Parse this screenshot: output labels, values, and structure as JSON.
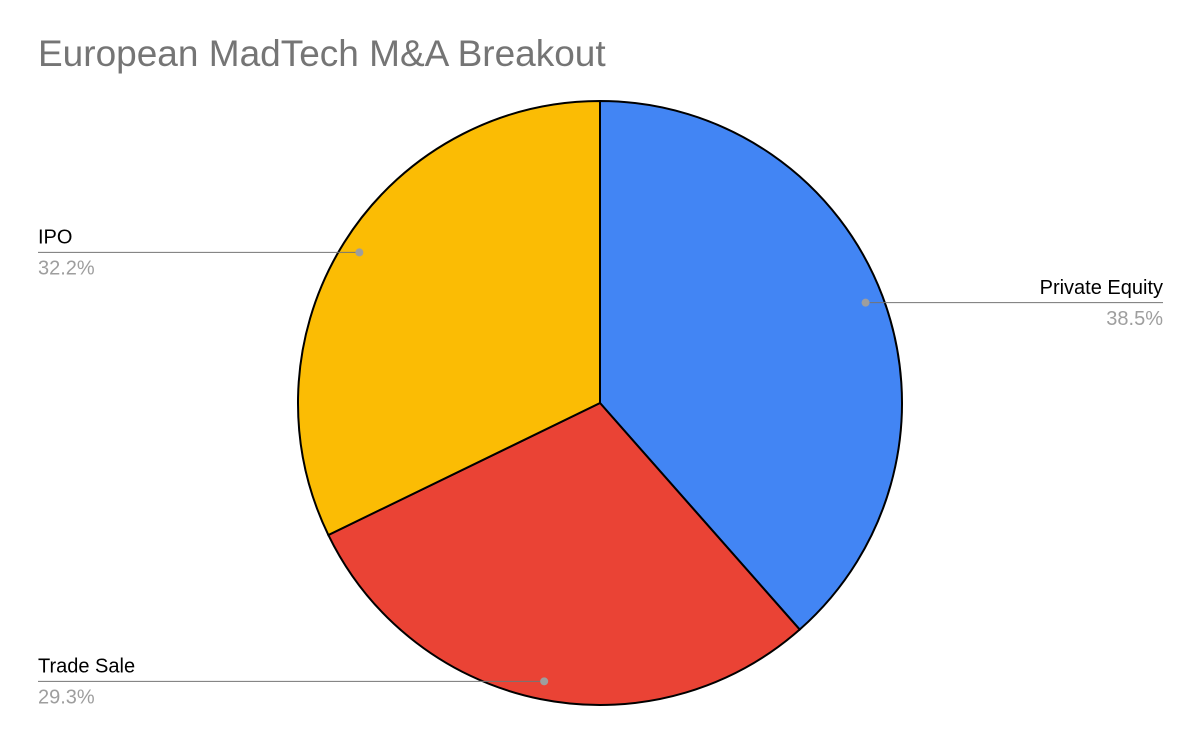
{
  "chart_data": {
    "type": "pie",
    "title": "European MadTech M&A Breakout",
    "categories": [
      "Private Equity",
      "Trade Sale",
      "IPO"
    ],
    "values": [
      38.5,
      29.3,
      32.2
    ],
    "value_labels": [
      "38.5%",
      "29.3%",
      "32.2%"
    ],
    "colors": [
      "#4285f4",
      "#ea4335",
      "#fbbc04"
    ]
  }
}
